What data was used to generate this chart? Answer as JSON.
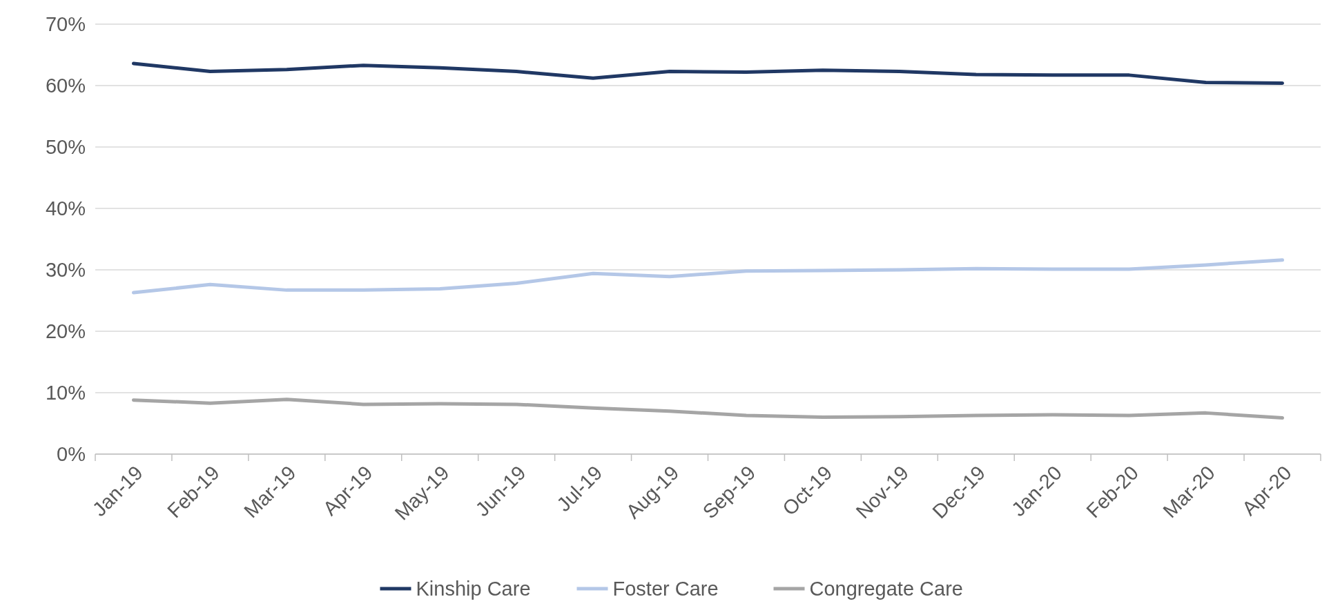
{
  "chart_data": {
    "type": "line",
    "categories": [
      "Jan-19",
      "Feb-19",
      "Mar-19",
      "Apr-19",
      "May-19",
      "Jun-19",
      "Jul-19",
      "Aug-19",
      "Sep-19",
      "Oct-19",
      "Nov-19",
      "Dec-19",
      "Jan-20",
      "Feb-20",
      "Mar-20",
      "Apr-20"
    ],
    "series": [
      {
        "name": "Kinship Care",
        "color": "#203864",
        "values": [
          63.6,
          62.3,
          62.6,
          63.3,
          62.9,
          62.3,
          61.2,
          62.3,
          62.2,
          62.5,
          62.3,
          61.8,
          61.7,
          61.7,
          60.5,
          60.4
        ]
      },
      {
        "name": "Foster Care",
        "color": "#b4c7e7",
        "values": [
          26.3,
          27.6,
          26.7,
          26.7,
          26.9,
          27.8,
          29.4,
          28.9,
          29.8,
          29.9,
          30.0,
          30.2,
          30.1,
          30.1,
          30.8,
          31.6
        ]
      },
      {
        "name": "Congregate Care",
        "color": "#a5a5a5",
        "values": [
          8.8,
          8.3,
          8.9,
          8.1,
          8.2,
          8.1,
          7.5,
          7.0,
          6.3,
          6.0,
          6.1,
          6.3,
          6.4,
          6.3,
          6.7,
          5.9
        ]
      }
    ],
    "ylim": [
      0,
      70
    ],
    "yticks": [
      {
        "value": 0,
        "label": "0%"
      },
      {
        "value": 10,
        "label": "10%"
      },
      {
        "value": 20,
        "label": "20%"
      },
      {
        "value": 30,
        "label": "30%"
      },
      {
        "value": 40,
        "label": "40%"
      },
      {
        "value": 50,
        "label": "50%"
      },
      {
        "value": 60,
        "label": "60%"
      },
      {
        "value": 70,
        "label": "70%"
      }
    ],
    "grid": "y",
    "legend": "bottom",
    "marker": "none",
    "line_style": "solid"
  }
}
